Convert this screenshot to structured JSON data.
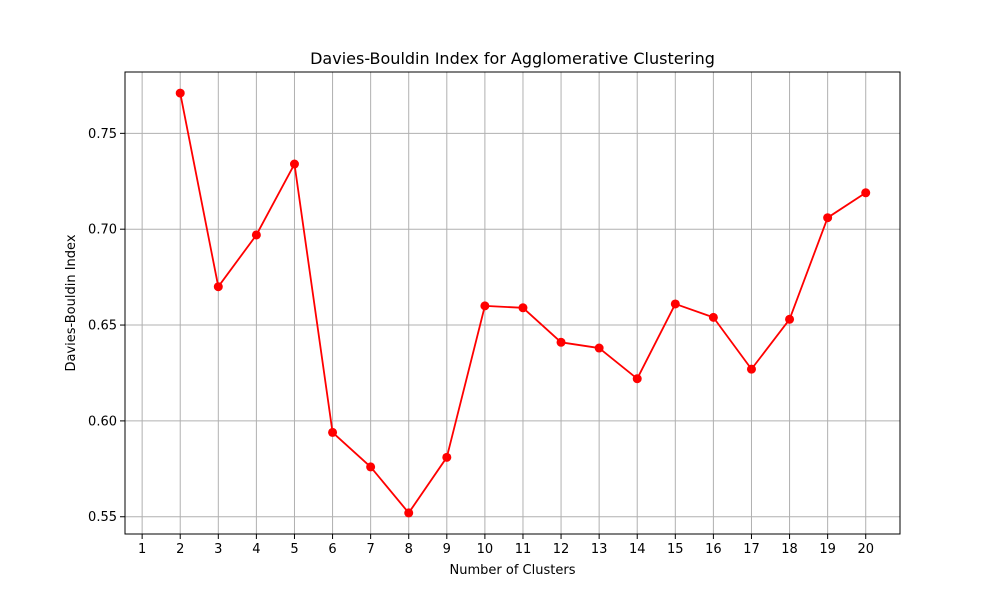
{
  "chart_data": {
    "type": "line",
    "title": "Davies-Bouldin Index for Agglomerative Clustering",
    "xlabel": "Number of Clusters",
    "ylabel": "Davies-Bouldin Index",
    "xlim": [
      0.55,
      20.9
    ],
    "ylim": [
      0.541,
      0.782
    ],
    "xticks": [
      "1",
      "2",
      "3",
      "4",
      "5",
      "6",
      "7",
      "8",
      "9",
      "10",
      "11",
      "12",
      "13",
      "14",
      "15",
      "16",
      "17",
      "18",
      "19",
      "20"
    ],
    "yticks": [
      "0.55",
      "0.60",
      "0.65",
      "0.70",
      "0.75"
    ],
    "grid": true,
    "series": [
      {
        "color": "#ff0000",
        "marker": "circle",
        "x": [
          2,
          3,
          4,
          5,
          6,
          7,
          8,
          9,
          10,
          11,
          12,
          13,
          14,
          15,
          16,
          17,
          18,
          19,
          20
        ],
        "y": [
          0.771,
          0.67,
          0.697,
          0.734,
          0.594,
          0.576,
          0.552,
          0.581,
          0.66,
          0.659,
          0.641,
          0.638,
          0.622,
          0.661,
          0.654,
          0.627,
          0.653,
          0.706,
          0.719
        ]
      }
    ]
  }
}
